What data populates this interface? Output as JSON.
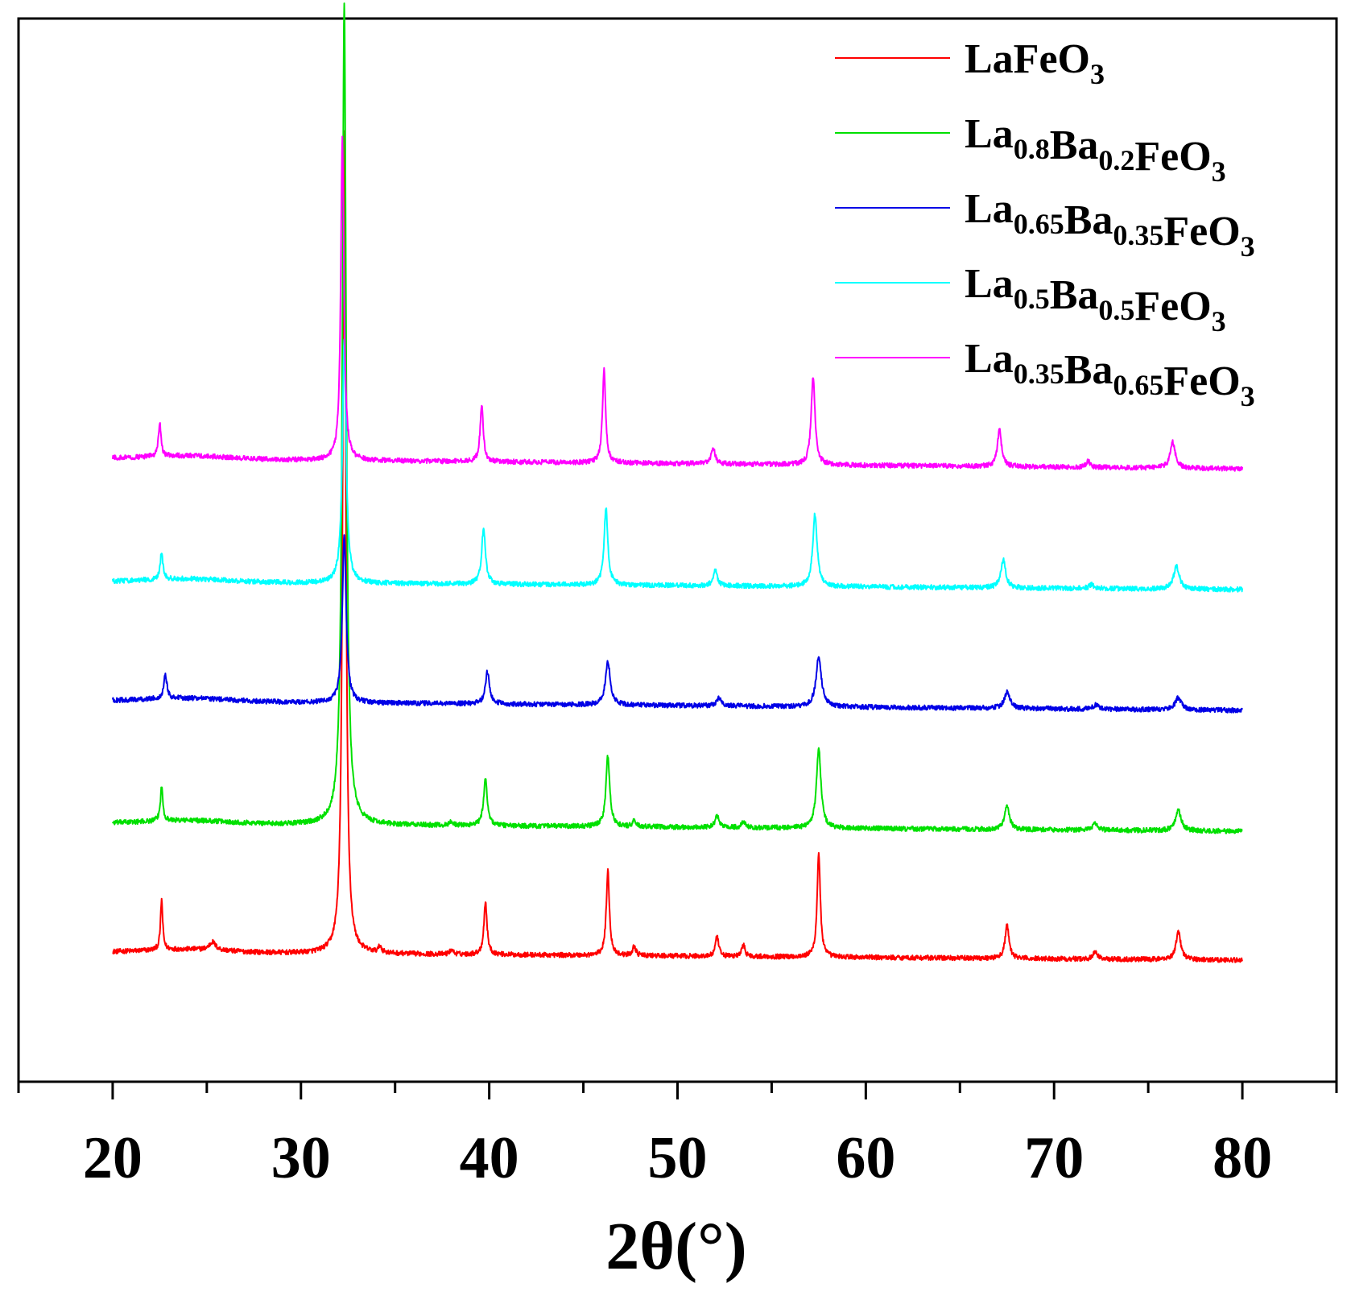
{
  "chart_data": {
    "type": "line",
    "xlabel": "2θ(°)",
    "ylabel": "",
    "xlim": [
      15,
      85
    ],
    "x_ticks": [
      20,
      30,
      40,
      50,
      60,
      70,
      80
    ],
    "x_tick_labels": [
      "20",
      "30",
      "40",
      "50",
      "60",
      "70",
      "80"
    ],
    "y_ticks_shown": false,
    "legend_position": "top-right",
    "grid": false,
    "x_range": [
      20,
      80
    ],
    "series": [
      {
        "name": "LaFeO3",
        "label_parts": [
          [
            "LaFeO",
            "n"
          ],
          [
            "3",
            "s"
          ]
        ],
        "color": "#ff0000",
        "offset": 0,
        "baseline_start": 30,
        "baseline_end": 20,
        "peaks": [
          [
            22.6,
            62,
            0.07
          ],
          [
            25.3,
            10,
            0.2
          ],
          [
            32.3,
            1020,
            0.1
          ],
          [
            34.2,
            8,
            0.1
          ],
          [
            38.0,
            6,
            0.1
          ],
          [
            39.8,
            65,
            0.1
          ],
          [
            46.3,
            105,
            0.1
          ],
          [
            47.7,
            12,
            0.1
          ],
          [
            52.1,
            25,
            0.1
          ],
          [
            53.5,
            15,
            0.1
          ],
          [
            57.5,
            130,
            0.1
          ],
          [
            67.5,
            42,
            0.12
          ],
          [
            72.2,
            10,
            0.12
          ],
          [
            76.6,
            35,
            0.15
          ]
        ]
      },
      {
        "name": "La0.8Ba0.2FeO3",
        "label_parts": [
          [
            "La",
            "n"
          ],
          [
            "0.8",
            "s"
          ],
          [
            "Ba",
            "n"
          ],
          [
            "0.2",
            "s"
          ],
          [
            "FeO",
            "n"
          ],
          [
            "3",
            "s"
          ]
        ],
        "color": "#00e000",
        "offset": 160,
        "baseline_start": 30,
        "baseline_end": 20,
        "peaks": [
          [
            22.6,
            42,
            0.08
          ],
          [
            32.3,
            1020,
            0.12
          ],
          [
            38.0,
            5,
            0.1
          ],
          [
            39.8,
            57,
            0.12
          ],
          [
            46.3,
            88,
            0.12
          ],
          [
            47.7,
            8,
            0.1
          ],
          [
            52.1,
            15,
            0.12
          ],
          [
            53.5,
            8,
            0.1
          ],
          [
            57.5,
            100,
            0.14
          ],
          [
            67.5,
            30,
            0.15
          ],
          [
            72.2,
            8,
            0.15
          ],
          [
            76.6,
            25,
            0.18
          ]
        ]
      },
      {
        "name": "La0.65Ba0.35FeO3",
        "label_parts": [
          [
            "La",
            "n"
          ],
          [
            "0.65",
            "s"
          ],
          [
            "Ba",
            "n"
          ],
          [
            "0.35",
            "s"
          ],
          [
            "FeO",
            "n"
          ],
          [
            "3",
            "s"
          ]
        ],
        "color": "#0000e6",
        "offset": 310,
        "baseline_start": 32,
        "baseline_end": 20,
        "peaks": [
          [
            22.8,
            30,
            0.1
          ],
          [
            32.3,
            210,
            0.12
          ],
          [
            39.9,
            40,
            0.13
          ],
          [
            46.3,
            55,
            0.15
          ],
          [
            52.2,
            10,
            0.15
          ],
          [
            57.5,
            62,
            0.17
          ],
          [
            67.5,
            20,
            0.18
          ],
          [
            72.2,
            5,
            0.18
          ],
          [
            76.6,
            15,
            0.2
          ]
        ]
      },
      {
        "name": "La0.5Ba0.5FeO3",
        "label_parts": [
          [
            "La",
            "n"
          ],
          [
            "0.5",
            "s"
          ],
          [
            "Ba",
            "n"
          ],
          [
            "0.5",
            "s"
          ],
          [
            "FeO",
            "n"
          ],
          [
            "3",
            "s"
          ]
        ],
        "color": "#00ffff",
        "offset": 460,
        "baseline_start": 30,
        "baseline_end": 20,
        "peaks": [
          [
            22.6,
            35,
            0.08
          ],
          [
            32.3,
            300,
            0.12
          ],
          [
            39.7,
            70,
            0.12
          ],
          [
            46.2,
            95,
            0.12
          ],
          [
            52.0,
            20,
            0.13
          ],
          [
            57.3,
            90,
            0.14
          ],
          [
            67.3,
            35,
            0.15
          ],
          [
            72.0,
            5,
            0.15
          ],
          [
            76.5,
            28,
            0.18
          ]
        ]
      },
      {
        "name": "La0.35Ba0.65FeO3",
        "label_parts": [
          [
            "La",
            "n"
          ],
          [
            "0.35",
            "s"
          ],
          [
            "Ba",
            "n"
          ],
          [
            "0.65",
            "s"
          ],
          [
            "FeO",
            "n"
          ],
          [
            "3",
            "s"
          ]
        ],
        "color": "#ff00ff",
        "offset": 610,
        "baseline_start": 33,
        "baseline_end": 20,
        "peaks": [
          [
            22.5,
            42,
            0.08
          ],
          [
            32.2,
            400,
            0.1
          ],
          [
            39.6,
            70,
            0.1
          ],
          [
            46.1,
            115,
            0.1
          ],
          [
            51.9,
            20,
            0.12
          ],
          [
            57.2,
            110,
            0.12
          ],
          [
            67.1,
            45,
            0.13
          ],
          [
            71.8,
            8,
            0.13
          ],
          [
            76.3,
            32,
            0.16
          ]
        ]
      }
    ]
  }
}
